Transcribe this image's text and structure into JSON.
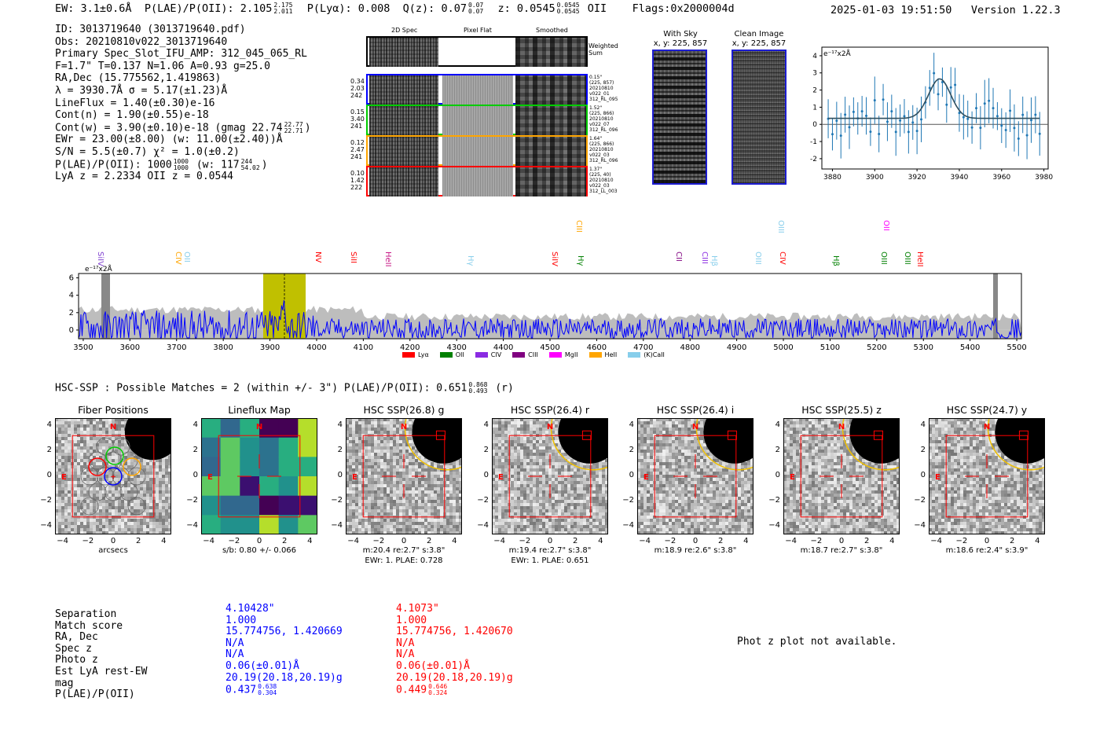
{
  "header": {
    "ew": "EW: 3.1±0.6Å",
    "plae_label": "P(LAE)/P(OII): 2.105",
    "plae_hi": "2.175",
    "plae_lo": "2.011",
    "plya": "P(Lyα): 0.008",
    "q_label": "Q(z): 0.07",
    "q_hi": "0.07",
    "q_lo": "0.07",
    "z_label": "z: 0.0545",
    "z_hi": "0.0545",
    "z_lo": "0.0545",
    "z_line": "OII",
    "flags": "Flags:0x2000004d",
    "timestamp": "2025-01-03 19:51:50",
    "version": "Version 1.22.3"
  },
  "info": {
    "id": "ID: 3013719640 (3013719640.pdf)",
    "obs": "Obs: 20210810v022_3013719640",
    "primary": "Primary Spec_Slot_IFU_AMP: 312_045_065_RL",
    "params": "F=1.7\"  T=0.137  N=1.06  A=0.93  g=25.0",
    "radec": "RA,Dec (15.775562,1.419863)",
    "lambda": "λ = 3930.7Å   σ = 5.17(±1.23)Å",
    "lineflux": "LineFlux = 1.40(±0.30)e-16",
    "contn": "Cont(n) = 1.90(±0.55)e-18",
    "contw": "Cont(w) = 3.90(±0.10)e-18 (gmag 22.74",
    "contw_hi": "22.77",
    "contw_lo": "22.71",
    "ewr": "EWr = 23.00(±8.00) (w: 11.00(±2.40))Å",
    "sn": "S/N = 5.5(±0.7)  χ² = 1.0(±0.2)",
    "plae": "P(LAE)/P(OII): 1000",
    "plae_hi": "1000",
    "plae_lo": "1000",
    "plae_w": "(w: 117",
    "plae_w_hi": "244",
    "plae_w_lo": "54.02",
    "lyaz": "LyA z = 2.2334   OII z = 0.0544"
  },
  "stamps": {
    "headers": [
      "2D Spec",
      "Pixel Flat",
      "Smoothed"
    ],
    "weighted_label": "Weighted Sum",
    "rows": [
      {
        "left": [
          "0.34",
          "2.03",
          "242"
        ],
        "right": [
          "0.15\"",
          "(225, 857)",
          "20210810",
          "v022_01",
          "312_RL_095"
        ],
        "color": "#0000ff"
      },
      {
        "left": [
          "0.15",
          "3.40",
          "241"
        ],
        "right": [
          "1.52\"",
          "(225, 866)",
          "20210810",
          "v022_07",
          "312_RL_096"
        ],
        "color": "#00cc00"
      },
      {
        "left": [
          "0.12",
          "2.47",
          "241"
        ],
        "right": [
          "1.64\"",
          "(225, 866)",
          "20210810",
          "v022_03",
          "312_RL_096"
        ],
        "color": "#ffa500"
      },
      {
        "left": [
          "0.10",
          "1.42",
          "222"
        ],
        "right": [
          "1.37\"",
          "(225, 40)",
          "20210810",
          "v022_03",
          "312_LL_003"
        ],
        "color": "#ff0000"
      }
    ]
  },
  "sky": {
    "with_sky_title": "With Sky",
    "with_sky_coords": "x, y: 225, 857",
    "clean_title": "Clean Image",
    "clean_coords": "x, y: 225, 857"
  },
  "line_fit": {
    "unit": "e⁻¹⁷x2Å",
    "x_ticks": [
      "3880",
      "3900",
      "3920",
      "3940",
      "3960",
      "3980"
    ],
    "y_ticks": [
      "4",
      "3",
      "2",
      "1",
      "0",
      "-1",
      "-2"
    ]
  },
  "full_spectrum": {
    "unit": "e⁻¹⁷x2Å",
    "x_ticks": [
      "3500",
      "3600",
      "3700",
      "3800",
      "3900",
      "4000",
      "4100",
      "4200",
      "4300",
      "4400",
      "4500",
      "4600",
      "4700",
      "4800",
      "4900",
      "5000",
      "5100",
      "5200",
      "5300",
      "5400",
      "5500"
    ],
    "y_ticks": [
      "6",
      "4",
      "2",
      "0"
    ],
    "line_labels": [
      {
        "text": "SiIV",
        "color": "#7f3fd0"
      },
      {
        "text": "CIV",
        "color": "#ffa500"
      },
      {
        "text": "OII",
        "color": "#87ceeb"
      },
      {
        "text": "NV",
        "color": "#ff0000"
      },
      {
        "text": "SiII",
        "color": "#ff0000"
      },
      {
        "text": "HeII",
        "color": "#c71585"
      },
      {
        "text": "Hγ",
        "color": "#87ceeb"
      },
      {
        "text": "SiIV",
        "color": "#ff0000"
      },
      {
        "text": "CIII",
        "color": "#ffa500"
      },
      {
        "text": "Hγ",
        "color": "#008000"
      },
      {
        "text": "CII",
        "color": "#800080"
      },
      {
        "text": "CIII",
        "color": "#8a2be2"
      },
      {
        "text": "Hβ",
        "color": "#87ceeb"
      },
      {
        "text": "OIII",
        "color": "#87ceeb"
      },
      {
        "text": "CIV",
        "color": "#ff0000"
      },
      {
        "text": "OIII",
        "color": "#87ceeb"
      },
      {
        "text": "Hβ",
        "color": "#008000"
      },
      {
        "text": "OII",
        "color": "#ff00ff"
      },
      {
        "text": "OIII",
        "color": "#008000"
      },
      {
        "text": "OIII",
        "color": "#008000"
      },
      {
        "text": "HeII",
        "color": "#ff0000"
      }
    ],
    "legend": [
      {
        "label": "Lyα",
        "color": "#ff0000"
      },
      {
        "label": "OII",
        "color": "#008000"
      },
      {
        "label": "CIV",
        "color": "#8a2be2"
      },
      {
        "label": "CIII",
        "color": "#800080"
      },
      {
        "label": "MgII",
        "color": "#ff00ff"
      },
      {
        "label": "HeII",
        "color": "#ffa500"
      },
      {
        "label": "(K)CaII",
        "color": "#87ceeb"
      }
    ]
  },
  "hsc": {
    "summary": "HSC-SSP : Possible Matches = 2 (within +/- 3\")  P(LAE)/P(OII): 0.651",
    "summary_hi": "0.868",
    "summary_lo": "0.493",
    "summary_band": "(r)",
    "axis_ticks": [
      "4",
      "2",
      "0",
      "−2",
      "−4"
    ],
    "x_ticks": [
      "−4",
      "−2",
      "0",
      "2",
      "4"
    ],
    "panels": [
      {
        "title": "Fiber Positions",
        "caption1": "arcsecs",
        "caption2": ""
      },
      {
        "title": "Lineflux Map",
        "caption1": "s/b: 0.80 +/- 0.066",
        "caption2": ""
      },
      {
        "title": "HSC SSP(26.8) g",
        "caption1": "m:20.4  re:2.7\"  s:3.8\"",
        "caption2": "EWr: 1. PLAE: 0.728"
      },
      {
        "title": "HSC SSP(26.4) r",
        "caption1": "m:19.4  re:2.7\"  s:3.8\"",
        "caption2": "EWr: 1. PLAE: 0.651"
      },
      {
        "title": "HSC SSP(26.4) i",
        "caption1": "m:18.9  re:2.6\"  s:3.8\"",
        "caption2": ""
      },
      {
        "title": "HSC SSP(25.5) z",
        "caption1": "m:18.7  re:2.7\"  s:3.8\"",
        "caption2": ""
      },
      {
        "title": "HSC SSP(24.7) y",
        "caption1": "m:18.6  re:2.4\"  s:3.9\"",
        "caption2": ""
      }
    ]
  },
  "matches": {
    "labels": [
      "Separation",
      "Match score",
      "RA, Dec",
      "Spec z",
      "Photo z",
      "Est LyA rest-EW",
      "mag",
      "P(LAE)/P(OII)"
    ],
    "match1": [
      "4.10428\"",
      "1.000",
      "15.774756, 1.420669",
      "N/A",
      "N/A",
      "0.06(±0.01)Å",
      "20.19(20.18,20.19)g",
      "0.437"
    ],
    "match1_plae_hi": "0.638",
    "match1_plae_lo": "0.304",
    "match2": [
      "4.1073\"",
      "1.000",
      "15.774756, 1.420670",
      "N/A",
      "N/A",
      "0.06(±0.01)Å",
      "20.19(20.18,20.19)g",
      "0.449"
    ],
    "match2_plae_hi": "0.646",
    "match2_plae_lo": "0.324",
    "photz_note": "Phot z plot not available."
  }
}
